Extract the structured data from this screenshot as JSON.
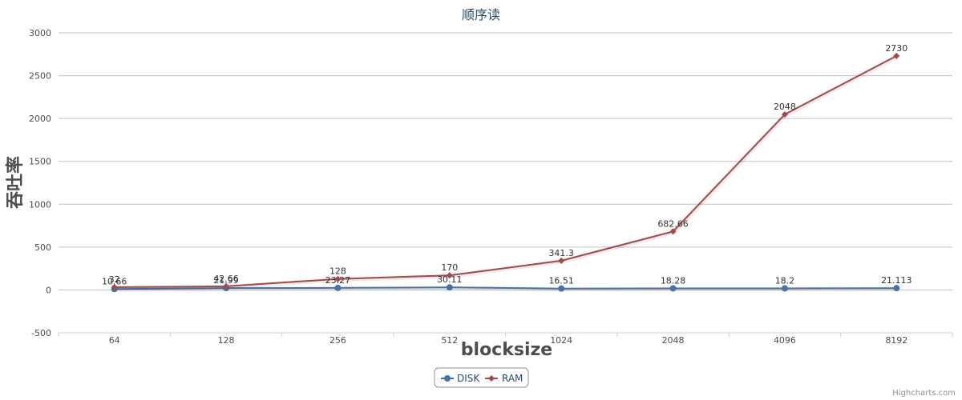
{
  "chart_data": {
    "type": "line",
    "title": "顺序读",
    "xlabel": "blocksize",
    "ylabel": "吞吐率",
    "categories": [
      "64",
      "128",
      "256",
      "512",
      "1024",
      "2048",
      "4096",
      "8192"
    ],
    "ylim": [
      -500,
      3000
    ],
    "yticks": [
      "-500",
      "0",
      "500",
      "1000",
      "1500",
      "2000",
      "2500",
      "3000"
    ],
    "grid": true,
    "legend_position": "bottom-center",
    "series": [
      {
        "name": "DISK",
        "color": "#4572a7",
        "marker": "circle",
        "values": [
          10.66,
          21.99,
          23.27,
          30.11,
          16.51,
          18.28,
          18.2,
          21.113
        ],
        "labels": [
          "10.66",
          "21.99",
          "23.27",
          "30.11",
          "16.51",
          "18.28",
          "18.2",
          "21.113"
        ]
      },
      {
        "name": "RAM",
        "color": "#aa4643",
        "marker": "diamond",
        "values": [
          32,
          42.66,
          128,
          170,
          341.3,
          682.66,
          2048,
          2730
        ],
        "labels": [
          "32",
          "42.66",
          "128",
          "170",
          "341.3",
          "682.66",
          "2048",
          "2730"
        ]
      }
    ]
  },
  "credit": "Highcharts.com"
}
